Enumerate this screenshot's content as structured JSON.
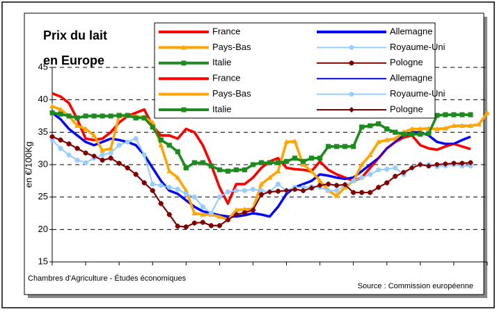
{
  "chart_data": {
    "type": "line",
    "title": [
      "Prix du lait",
      "en Europe"
    ],
    "ylabel": "en €/100Kg",
    "footer_left": "Chambres d'Agriculture - Études économiques",
    "footer_right": "Source : Commission européenne",
    "categories": [
      null,
      null,
      null,
      null,
      null,
      null,
      null,
      null,
      null,
      null,
      null,
      null,
      null,
      null,
      null,
      null,
      null,
      null,
      null,
      null,
      null,
      null,
      null,
      null,
      null,
      null,
      null,
      null,
      null,
      null,
      null,
      null,
      null,
      null,
      null,
      null,
      null,
      null,
      null,
      null,
      null,
      null,
      null,
      null,
      null,
      null,
      null,
      null,
      null,
      null,
      null,
      null,
      null
    ],
    "ylim": [
      15,
      45
    ],
    "yticks": [
      15,
      20,
      25,
      30,
      35,
      40,
      45
    ],
    "grid": true,
    "series": [
      {
        "name": "France",
        "color": "#ff0000",
        "thick": true,
        "marker": "none",
        "values": [
          41,
          40.5,
          39.5,
          37,
          34,
          33.8,
          34,
          35,
          36.5,
          37.5,
          38,
          38.5,
          36,
          34.5,
          34.5,
          34,
          35.5,
          35,
          33,
          30,
          26.5,
          24,
          27,
          27,
          28,
          29.5,
          30.5,
          31,
          29.5,
          29.3,
          29.2,
          29,
          30.5,
          29.2,
          28.5,
          28,
          27.5,
          28,
          29.5,
          31,
          32.5,
          33.5,
          34.2,
          34.5,
          33,
          32.5,
          32.3,
          32.8,
          33.2,
          32.8,
          32.4,
          null,
          null
        ]
      },
      {
        "name": "Allemagne",
        "color": "#0000ff",
        "thick": true,
        "marker": "none",
        "values": [
          38,
          37,
          35.5,
          34.5,
          33.5,
          33,
          33.5,
          34,
          33.8,
          33.5,
          33,
          31.5,
          29.5,
          27.5,
          26,
          25.5,
          24.5,
          23.5,
          22.8,
          22.5,
          22.2,
          22,
          22,
          22.2,
          22.5,
          22.3,
          22,
          23.5,
          25.5,
          26.5,
          27,
          27.5,
          28.5,
          28.3,
          28,
          27.8,
          28,
          29,
          30,
          31,
          32.5,
          33.5,
          34.5,
          35,
          35,
          34.5,
          33.5,
          33.2,
          33.2,
          33.8,
          34.3,
          null,
          null
        ]
      },
      {
        "name": "Pays-Bas",
        "color": "#ffa500",
        "thick": true,
        "marker": "triangle",
        "values": [
          39,
          38.5,
          37.5,
          36,
          35.5,
          34.5,
          32.2,
          32.5,
          37.5,
          37.5,
          37.5,
          37.3,
          36.5,
          33,
          29,
          28,
          26,
          22.5,
          22.3,
          22.3,
          22,
          21.5,
          23,
          23.1,
          23.2,
          27,
          28,
          29,
          33.5,
          33.6,
          30,
          29,
          27.5,
          26,
          25.2,
          26.5,
          27.5,
          30,
          31.5,
          33.5,
          33.8,
          34,
          35,
          35.5,
          35.5,
          35.6,
          35.5,
          35.6,
          36,
          36,
          36,
          36.2,
          38
        ]
      },
      {
        "name": "Royaume-Uni",
        "color": "#99ccff",
        "thick": false,
        "marker": "circle",
        "values": [
          33.8,
          32.5,
          31.5,
          30.7,
          30.3,
          31,
          31.5,
          31.8,
          33,
          33.5,
          34,
          31.5,
          27,
          26.8,
          26.5,
          26.2,
          25.5,
          25,
          23.5,
          22.5,
          25,
          25.8,
          26,
          26,
          26.2,
          26,
          25.8,
          27,
          26,
          26.5,
          26.5,
          26.6,
          26.5,
          26,
          26,
          26.8,
          27.5,
          28,
          28.5,
          29.2,
          29.3,
          29.5,
          28.5,
          29.5,
          30,
          30,
          29.7,
          29.8,
          30,
          29.8,
          29.8,
          null,
          null
        ]
      },
      {
        "name": "Italie",
        "color": "#1f8a1f",
        "thick": true,
        "marker": "square",
        "values": [
          38,
          37.8,
          37.5,
          37.2,
          37.5,
          37.5,
          37.5,
          37.5,
          37.6,
          37.6,
          37.2,
          37.2,
          35.8,
          33.8,
          33,
          32,
          29.5,
          30.3,
          30.3,
          29.8,
          29.2,
          29,
          29.2,
          29.2,
          30,
          30.3,
          30.3,
          30.3,
          30.5,
          31,
          30.5,
          31,
          31,
          32.8,
          32.8,
          32.8,
          32.8,
          35.8,
          36,
          36.3,
          35.5,
          35,
          34.7,
          34.7,
          34.7,
          34.8,
          37.6,
          37.7,
          37.7,
          37.7,
          37.7,
          null,
          null
        ]
      },
      {
        "name": "Pologne",
        "color": "#800000",
        "thick": false,
        "marker": "circle",
        "values": [
          34.3,
          33.8,
          33.2,
          32.5,
          31.8,
          31.3,
          30.7,
          31,
          30.2,
          29.5,
          28.5,
          27.2,
          26,
          24,
          22.3,
          20.5,
          20.4,
          21,
          21.1,
          20.6,
          20.6,
          21.5,
          22.3,
          22.6,
          23,
          25.4,
          25.8,
          25.9,
          26,
          26.2,
          26,
          26.4,
          26.8,
          27,
          26.8,
          26.9,
          25.7,
          25.7,
          25.7,
          26.5,
          27.2,
          28.2,
          28.8,
          29.5,
          30,
          29.8,
          30,
          30.1,
          30.2,
          30.2,
          30.3,
          null,
          null
        ]
      },
      {
        "name": "France",
        "color": "#ff0000",
        "thick": true,
        "marker": "none",
        "values": [
          41,
          40.5,
          39.5,
          37,
          34,
          33.8,
          34,
          35,
          36.5,
          37.5,
          38,
          38.5,
          36,
          34.5,
          34.5,
          34,
          35.5,
          35,
          33,
          30,
          26.5,
          24,
          27,
          27,
          28,
          29.5,
          30.5,
          31,
          29.5,
          29.3,
          29.2,
          29,
          30.5,
          29.2,
          28.5,
          28,
          27.5,
          28,
          29.5,
          31,
          32.5,
          33.5,
          34.2,
          34.5,
          33,
          32.5,
          32.3,
          32.8,
          33.2,
          32.8,
          32.4,
          null,
          null
        ]
      },
      {
        "name": "Allemagne",
        "color": "#0000ff",
        "thick": false,
        "marker": "none",
        "values": [
          38,
          37,
          35.5,
          34.5,
          33.5,
          33,
          33.5,
          34,
          33.8,
          33.5,
          33,
          31.5,
          29.5,
          27.5,
          26,
          25.5,
          24.5,
          23.5,
          22.8,
          22.5,
          22.2,
          22,
          22,
          22.2,
          22.5,
          22.3,
          22,
          23.5,
          25.5,
          26.5,
          27,
          27.5,
          28.5,
          28.3,
          28,
          27.8,
          28,
          29,
          30,
          31,
          32.5,
          33.5,
          34.5,
          35,
          35,
          34.5,
          33.5,
          33.2,
          33.2,
          33.8,
          34.3,
          null,
          null
        ]
      },
      {
        "name": "Pays-Bas",
        "color": "#ffa500",
        "thick": true,
        "marker": "none",
        "values": [
          39,
          38.5,
          37.5,
          36,
          35.5,
          34.5,
          32.2,
          32.5,
          37.5,
          37.5,
          37.5,
          37.3,
          36.5,
          33,
          29,
          28,
          26,
          22.5,
          22.3,
          22.3,
          22,
          21.5,
          23,
          23.1,
          23.2,
          27,
          28,
          29,
          33.5,
          33.6,
          30,
          29,
          27.5,
          26,
          25.2,
          26.5,
          27.5,
          30,
          31.5,
          33.5,
          33.8,
          34,
          35,
          35.5,
          35.5,
          35.6,
          35.5,
          35.6,
          36,
          36,
          36,
          36.2,
          38
        ]
      },
      {
        "name": "Royaume-Uni",
        "color": "#99ccff",
        "thick": false,
        "marker": "circle",
        "values": [
          33.8,
          32.5,
          31.5,
          30.7,
          30.3,
          31,
          31.5,
          31.8,
          33,
          33.5,
          34,
          31.5,
          27,
          26.8,
          26.5,
          26.2,
          25.5,
          25,
          23.5,
          22.5,
          25,
          25.8,
          26,
          26,
          26.2,
          26,
          25.8,
          27,
          26,
          26.5,
          26.5,
          26.6,
          26.5,
          26,
          26,
          26.8,
          27.5,
          28,
          28.5,
          29.2,
          29.3,
          29.5,
          28.5,
          29.5,
          30,
          30,
          29.7,
          29.8,
          30,
          29.8,
          29.8,
          null,
          null
        ]
      },
      {
        "name": "Italie",
        "color": "#1f8a1f",
        "thick": true,
        "marker": "square",
        "values": [
          38,
          37.8,
          37.5,
          37.2,
          37.5,
          37.5,
          37.5,
          37.5,
          37.6,
          37.6,
          37.2,
          37.2,
          35.8,
          33.8,
          33,
          32,
          29.5,
          30.3,
          30.3,
          29.8,
          29.2,
          29,
          29.2,
          29.2,
          30,
          30.3,
          30.3,
          30.3,
          30.5,
          31,
          30.5,
          31,
          31,
          32.8,
          32.8,
          32.8,
          32.8,
          35.8,
          36,
          36.3,
          35.5,
          35,
          34.7,
          34.7,
          34.7,
          34.8,
          37.6,
          37.7,
          37.7,
          37.7,
          37.7,
          null,
          null
        ]
      },
      {
        "name": "Pologne",
        "color": "#800000",
        "thick": false,
        "marker": "diamond",
        "values": [
          34.3,
          33.8,
          33.2,
          32.5,
          31.8,
          31.3,
          30.7,
          31,
          30.2,
          29.5,
          28.5,
          27.2,
          26,
          24,
          22.3,
          20.5,
          20.4,
          21,
          21.1,
          20.6,
          20.6,
          21.5,
          22.3,
          22.6,
          23,
          25.4,
          25.8,
          25.9,
          26,
          26.2,
          26,
          26.4,
          26.8,
          27,
          26.8,
          26.9,
          25.7,
          25.7,
          25.7,
          26.5,
          27.2,
          28.2,
          28.8,
          29.5,
          30,
          29.8,
          30,
          30.1,
          30.2,
          30.2,
          30.3,
          null,
          null
        ]
      }
    ]
  }
}
